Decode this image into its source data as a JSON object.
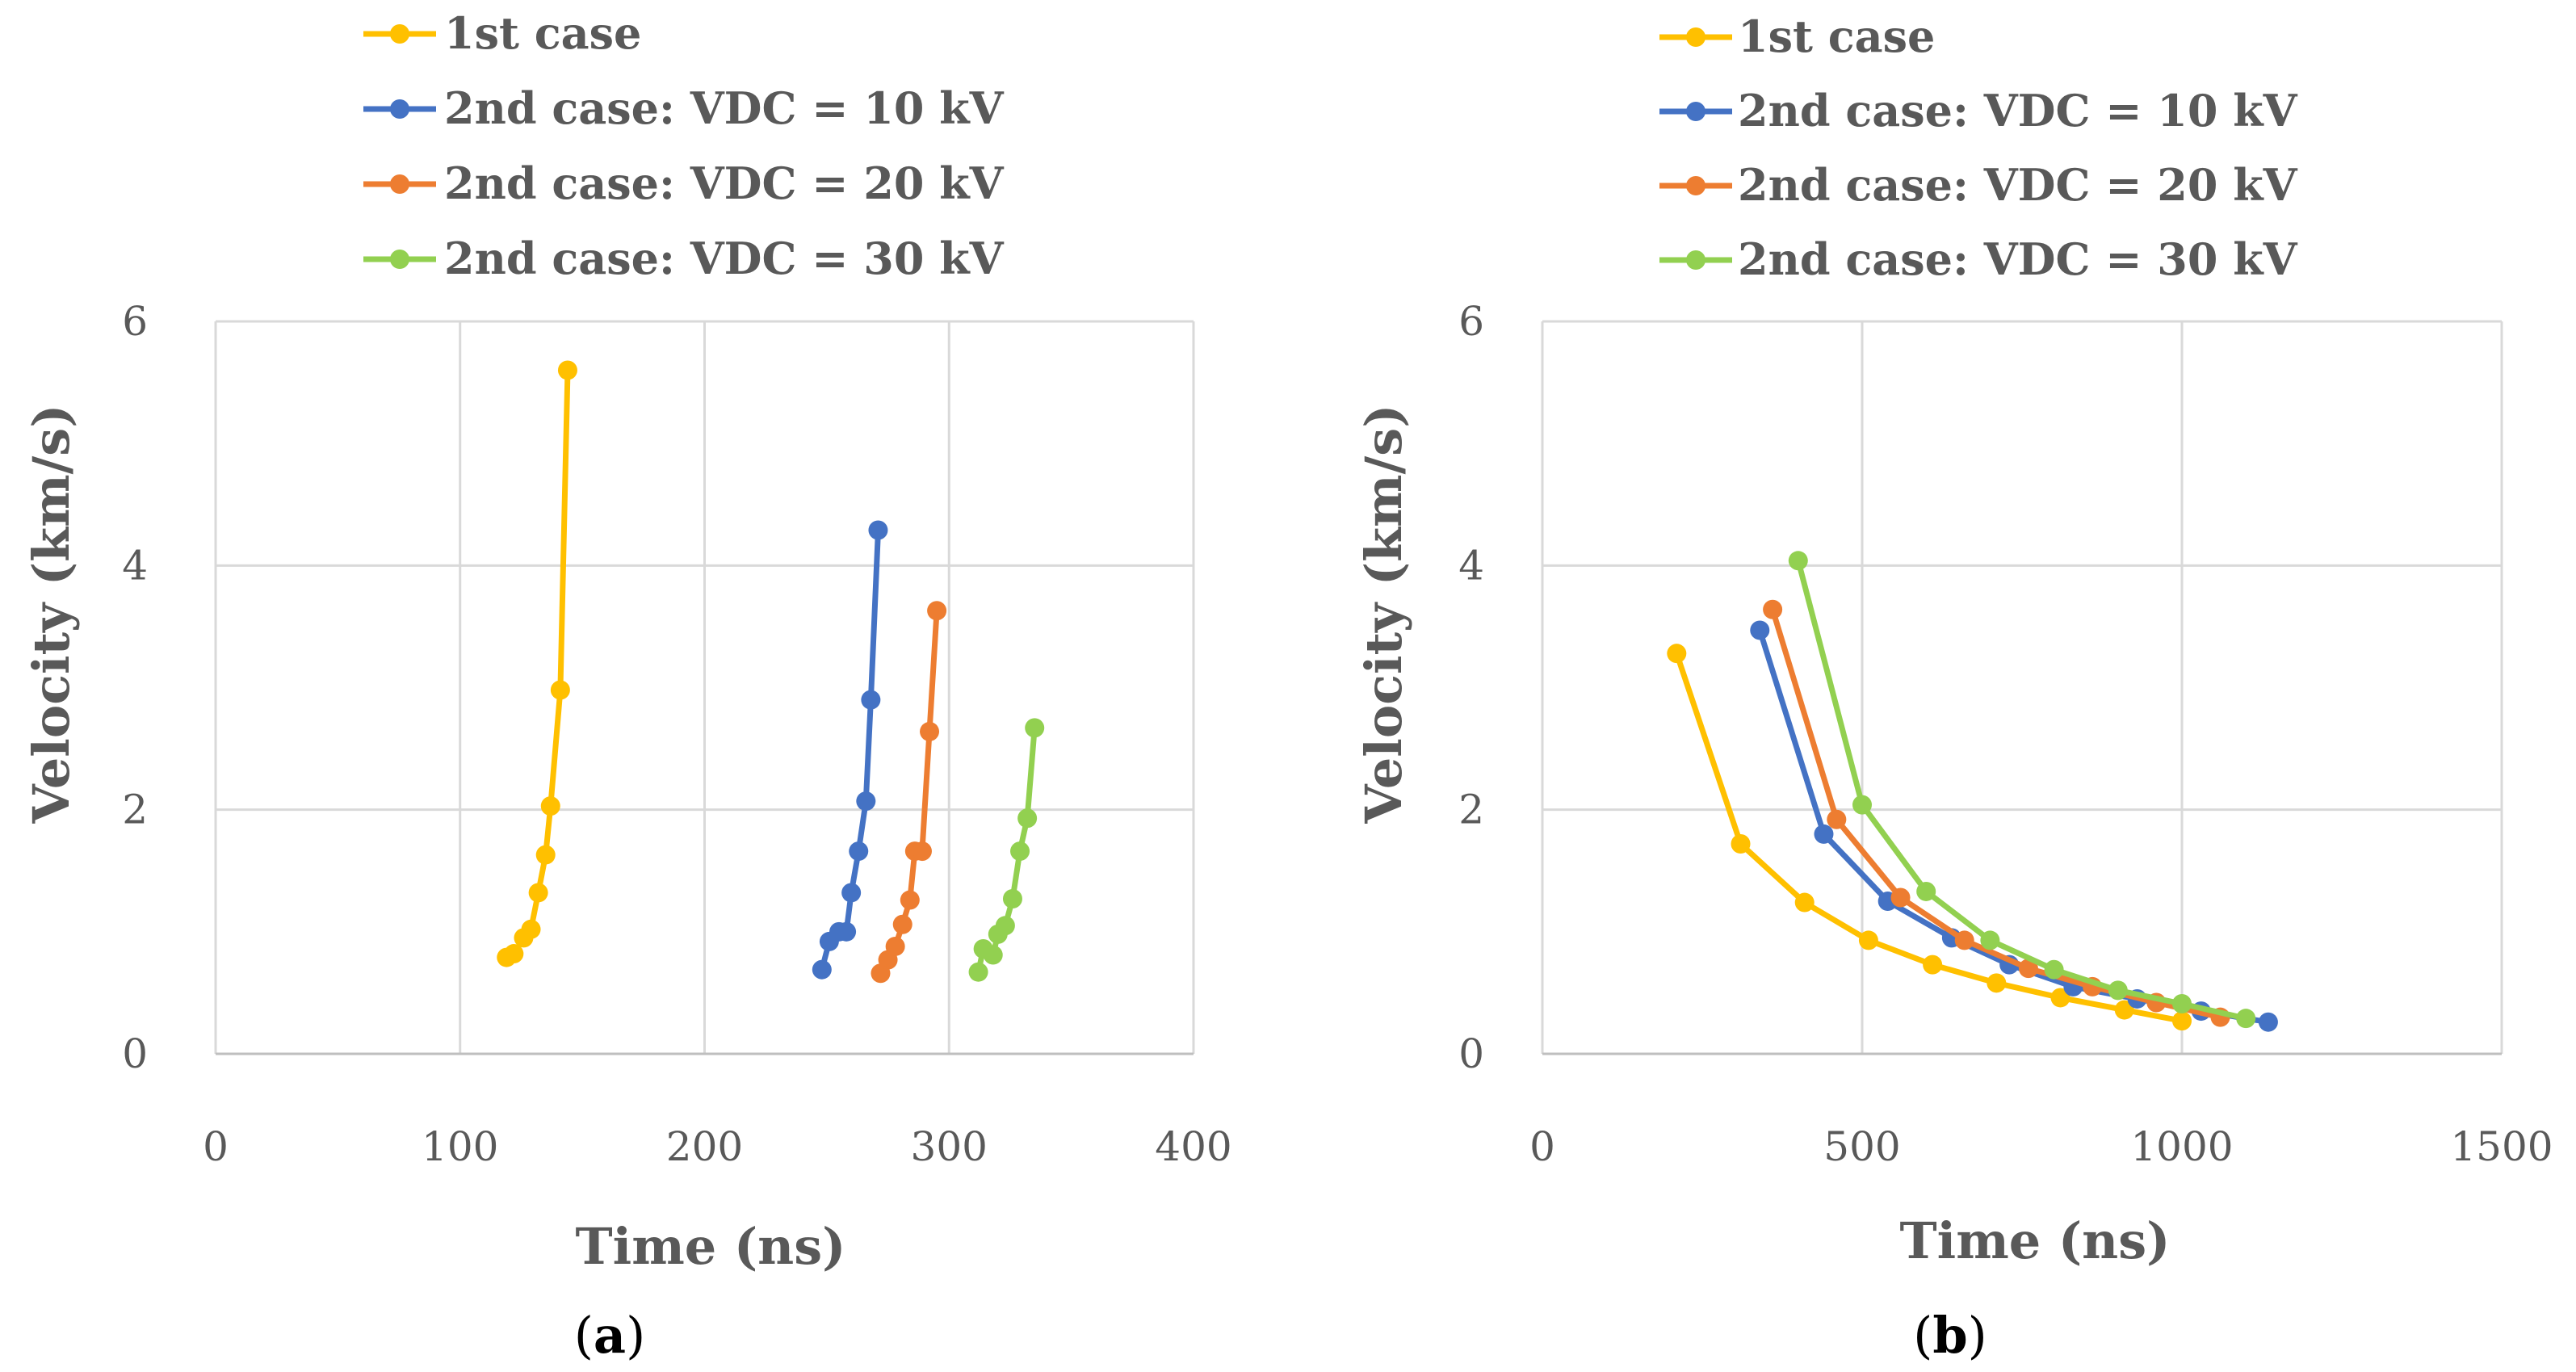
{
  "colors": {
    "case1": "#FFC000",
    "vdc10": "#4472C4",
    "vdc20": "#ED7D31",
    "vdc30": "#92D050",
    "grid": "#D9D9D9",
    "axis": "#BFBFBF",
    "text": "#595959"
  },
  "chart_data": [
    {
      "type": "line",
      "panel_label": "a",
      "caption": "(a)",
      "xlabel": "Time (ns)",
      "ylabel": "Velocity (km/s)",
      "xlim": [
        0,
        400
      ],
      "ylim": [
        0,
        6
      ],
      "xticks": [
        0,
        100,
        200,
        300,
        400
      ],
      "yticks": [
        0,
        2,
        4,
        6
      ],
      "xtick_labels": [
        "0",
        "100",
        "200",
        "300",
        "400"
      ],
      "ytick_labels": [
        "0",
        "2",
        "4",
        "6"
      ],
      "grid": true,
      "legend_position": "top",
      "series": [
        {
          "name": "1st case",
          "color_key": "case1",
          "points": [
            [
              119,
              0.79
            ],
            [
              122,
              0.82
            ],
            [
              126,
              0.95
            ],
            [
              129,
              1.02
            ],
            [
              132,
              1.32
            ],
            [
              135,
              1.63
            ],
            [
              137,
              2.03
            ],
            [
              141,
              2.98
            ],
            [
              144,
              5.6
            ]
          ]
        },
        {
          "name": "2nd case: VDC = 10 kV",
          "color_key": "vdc10",
          "points": [
            [
              248,
              0.69
            ],
            [
              251,
              0.92
            ],
            [
              255,
              1.0
            ],
            [
              258,
              1.0
            ],
            [
              260,
              1.32
            ],
            [
              263,
              1.66
            ],
            [
              266,
              2.07
            ],
            [
              268,
              2.9
            ],
            [
              271,
              4.29
            ]
          ]
        },
        {
          "name": "2nd case: VDC = 20 kV",
          "color_key": "vdc20",
          "points": [
            [
              272,
              0.66
            ],
            [
              275,
              0.77
            ],
            [
              278,
              0.88
            ],
            [
              281,
              1.06
            ],
            [
              284,
              1.26
            ],
            [
              286,
              1.66
            ],
            [
              289,
              1.66
            ],
            [
              292,
              2.64
            ],
            [
              295,
              3.63
            ]
          ]
        },
        {
          "name": "2nd case: VDC = 30 kV",
          "color_key": "vdc30",
          "points": [
            [
              312,
              0.67
            ],
            [
              314,
              0.86
            ],
            [
              318,
              0.81
            ],
            [
              320,
              0.98
            ],
            [
              323,
              1.05
            ],
            [
              326,
              1.27
            ],
            [
              329,
              1.66
            ],
            [
              332,
              1.93
            ],
            [
              335,
              2.67
            ]
          ]
        }
      ]
    },
    {
      "type": "line",
      "panel_label": "b",
      "caption": "(b)",
      "xlabel": "Time (ns)",
      "ylabel": "Velocity (km/s)",
      "xlim": [
        0,
        1500
      ],
      "ylim": [
        0,
        6
      ],
      "xticks": [
        0,
        500,
        1000,
        1500
      ],
      "yticks": [
        0,
        2,
        4,
        6
      ],
      "xtick_labels": [
        "0",
        "500",
        "1000",
        "1500"
      ],
      "ytick_labels": [
        "0",
        "2",
        "4",
        "6"
      ],
      "grid": true,
      "legend_position": "top",
      "series": [
        {
          "name": "1st case",
          "color_key": "case1",
          "points": [
            [
              210,
              3.28
            ],
            [
              310,
              1.72
            ],
            [
              410,
              1.24
            ],
            [
              510,
              0.93
            ],
            [
              610,
              0.73
            ],
            [
              710,
              0.58
            ],
            [
              810,
              0.46
            ],
            [
              910,
              0.36
            ],
            [
              1000,
              0.27
            ]
          ]
        },
        {
          "name": "2nd case: VDC = 10 kV",
          "color_key": "vdc10",
          "points": [
            [
              340,
              3.47
            ],
            [
              440,
              1.8
            ],
            [
              540,
              1.25
            ],
            [
              640,
              0.95
            ],
            [
              730,
              0.73
            ],
            [
              830,
              0.55
            ],
            [
              930,
              0.45
            ],
            [
              1030,
              0.35
            ],
            [
              1135,
              0.26
            ]
          ]
        },
        {
          "name": "2nd case: VDC = 20 kV",
          "color_key": "vdc20",
          "points": [
            [
              360,
              3.64
            ],
            [
              460,
              1.92
            ],
            [
              560,
              1.28
            ],
            [
              660,
              0.93
            ],
            [
              760,
              0.7
            ],
            [
              860,
              0.55
            ],
            [
              960,
              0.42
            ],
            [
              1060,
              0.3
            ]
          ]
        },
        {
          "name": "2nd case: VDC = 30 kV",
          "color_key": "vdc30",
          "points": [
            [
              400,
              4.04
            ],
            [
              500,
              2.04
            ],
            [
              600,
              1.33
            ],
            [
              700,
              0.93
            ],
            [
              800,
              0.69
            ],
            [
              900,
              0.52
            ],
            [
              1000,
              0.41
            ],
            [
              1100,
              0.29
            ]
          ]
        }
      ]
    }
  ]
}
